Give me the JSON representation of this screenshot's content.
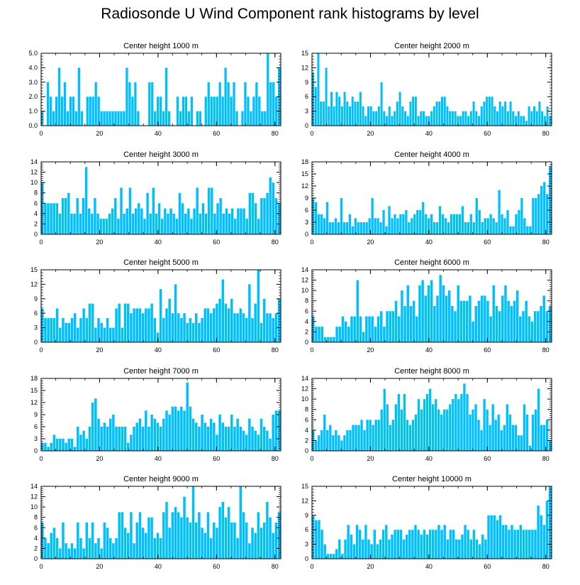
{
  "figure_title": "Radiosonde U Wind Component rank histograms by level",
  "bar_color": "#00bfff",
  "chart_data": [
    {
      "type": "bar",
      "title": "Center height 1000 m",
      "xlim": [
        0,
        82
      ],
      "ylim": [
        0,
        5
      ],
      "yticks": [
        "0.0",
        "1.0",
        "2.0",
        "3.0",
        "4.0",
        "5.0"
      ],
      "xticks": [
        0,
        20,
        40,
        60,
        80
      ],
      "values": [
        1,
        0,
        3,
        2,
        1,
        2,
        4,
        2,
        3,
        1,
        2,
        2,
        1,
        4,
        1,
        0,
        2,
        2,
        2,
        3,
        2,
        1,
        1,
        1,
        1,
        1,
        1,
        1,
        1,
        1,
        4,
        3,
        2,
        3,
        1,
        0,
        0,
        0,
        3,
        3,
        1,
        2,
        2,
        1,
        4,
        1,
        0,
        0,
        2,
        1,
        2,
        2,
        1,
        2,
        0,
        1,
        1,
        0,
        2,
        3,
        2,
        2,
        2,
        3,
        2,
        4,
        3,
        2,
        3,
        1,
        0,
        1,
        3,
        2,
        1,
        2,
        3,
        2,
        1,
        1,
        5,
        3,
        3,
        2,
        4
      ]
    },
    {
      "type": "bar",
      "title": "Center height 2000 m",
      "xlim": [
        0,
        82
      ],
      "ylim": [
        0,
        15
      ],
      "yticks": [
        "0",
        "3",
        "6",
        "9",
        "12",
        "15"
      ],
      "xticks": [
        0,
        20,
        40,
        60,
        80
      ],
      "values": [
        11,
        8,
        15,
        5,
        5,
        12,
        4,
        7,
        4,
        7,
        6,
        4,
        7,
        5,
        4,
        6,
        5,
        5,
        7,
        4,
        2,
        4,
        4,
        3,
        3,
        4,
        9,
        3,
        2,
        4,
        2,
        3,
        5,
        7,
        4,
        3,
        2,
        5,
        6,
        6,
        2,
        3,
        3,
        2,
        2,
        3,
        4,
        5,
        5,
        6,
        6,
        4,
        3,
        3,
        3,
        2,
        2,
        3,
        3,
        2,
        3,
        5,
        3,
        2,
        4,
        5,
        6,
        6,
        6,
        4,
        3,
        5,
        4,
        5,
        3,
        5,
        3,
        2,
        3,
        2,
        2,
        1,
        4,
        3,
        4,
        3,
        5,
        3,
        2,
        4,
        2
      ]
    },
    {
      "type": "bar",
      "title": "Center height 3000 m",
      "xlim": [
        0,
        82
      ],
      "ylim": [
        0,
        14
      ],
      "yticks": [
        "0",
        "2",
        "4",
        "6",
        "8",
        "10",
        "12",
        "14"
      ],
      "xticks": [
        0,
        20,
        40,
        60,
        80
      ],
      "values": [
        10,
        6,
        6,
        6,
        6,
        6,
        4,
        7,
        7,
        8,
        4,
        4,
        7,
        4,
        7,
        13,
        5,
        4,
        7,
        4,
        3,
        3,
        3,
        4,
        5,
        7,
        3,
        9,
        4,
        5,
        9,
        4,
        5,
        6,
        5,
        3,
        8,
        4,
        9,
        4,
        6,
        3,
        5,
        4,
        5,
        4,
        3,
        8,
        6,
        4,
        5,
        3,
        5,
        9,
        4,
        6,
        4,
        9,
        9,
        4,
        6,
        7,
        4,
        5,
        4,
        5,
        3,
        5,
        5,
        5,
        3,
        8,
        8,
        6,
        3,
        7,
        7,
        8,
        11,
        10,
        7,
        6
      ]
    },
    {
      "type": "bar",
      "title": "Center height 4000 m",
      "xlim": [
        0,
        82
      ],
      "ylim": [
        0,
        18
      ],
      "yticks": [
        "0",
        "3",
        "6",
        "9",
        "12",
        "15",
        "18"
      ],
      "xticks": [
        0,
        20,
        40,
        60,
        80
      ],
      "values": [
        9,
        8,
        5,
        5,
        4,
        8,
        3,
        3,
        4,
        3,
        9,
        3,
        3,
        5,
        2,
        4,
        3,
        3,
        3,
        3,
        4,
        9,
        4,
        4,
        3,
        6,
        2,
        7,
        4,
        5,
        4,
        5,
        5,
        6,
        3,
        4,
        5,
        6,
        6,
        8,
        5,
        4,
        5,
        3,
        3,
        7,
        5,
        4,
        3,
        5,
        5,
        5,
        5,
        7,
        3,
        3,
        5,
        3,
        9,
        6,
        3,
        4,
        4,
        5,
        4,
        3,
        11,
        5,
        4,
        6,
        2,
        2,
        5,
        6,
        9,
        4,
        2,
        2,
        9,
        9,
        10,
        12,
        13,
        10,
        17
      ]
    },
    {
      "type": "bar",
      "title": "Center height 5000 m",
      "xlim": [
        0,
        82
      ],
      "ylim": [
        0,
        15
      ],
      "yticks": [
        "0",
        "3",
        "6",
        "9",
        "12",
        "15"
      ],
      "xticks": [
        0,
        20,
        40,
        60,
        80
      ],
      "values": [
        7,
        5,
        5,
        5,
        5,
        7,
        3,
        5,
        4,
        4,
        5,
        6,
        3,
        5,
        7,
        5,
        8,
        8,
        3,
        5,
        4,
        3,
        5,
        3,
        3,
        7,
        8,
        3,
        8,
        8,
        6,
        7,
        7,
        7,
        6,
        7,
        7,
        8,
        5,
        2,
        11,
        5,
        7,
        9,
        6,
        12,
        6,
        5,
        6,
        4,
        5,
        4,
        6,
        4,
        5,
        7,
        7,
        6,
        7,
        8,
        9,
        13,
        8,
        7,
        9,
        6,
        6,
        7,
        6,
        5,
        12,
        5,
        8,
        15,
        4,
        9,
        6,
        6,
        5,
        6,
        9
      ]
    },
    {
      "type": "bar",
      "title": "Center height 6000 m",
      "xlim": [
        0,
        82
      ],
      "ylim": [
        0,
        14
      ],
      "yticks": [
        "0",
        "2",
        "4",
        "6",
        "8",
        "10",
        "12",
        "14"
      ],
      "xticks": [
        0,
        20,
        40,
        60,
        80
      ],
      "values": [
        5,
        3,
        3,
        3,
        1,
        1,
        1,
        1,
        3,
        3,
        5,
        4,
        3,
        5,
        5,
        12,
        5,
        2,
        5,
        5,
        5,
        3,
        5,
        6,
        3,
        6,
        6,
        6,
        8,
        5,
        10,
        7,
        11,
        7,
        8,
        5,
        11,
        12,
        9,
        11,
        12,
        7,
        9,
        13,
        11,
        9,
        10,
        7,
        6,
        11,
        8,
        8,
        8,
        9,
        4,
        7,
        8,
        9,
        9,
        8,
        5,
        11,
        7,
        6,
        9,
        11,
        8,
        7,
        8,
        10,
        5,
        6,
        8,
        5,
        4,
        6,
        6,
        7,
        9,
        6,
        7
      ]
    },
    {
      "type": "bar",
      "title": "Center height 7000 m",
      "xlim": [
        0,
        82
      ],
      "ylim": [
        0,
        18
      ],
      "yticks": [
        "0",
        "3",
        "6",
        "9",
        "12",
        "15",
        "18"
      ],
      "xticks": [
        0,
        20,
        40,
        60,
        80
      ],
      "values": [
        2,
        2,
        1,
        2,
        4,
        3,
        3,
        3,
        2,
        3,
        3,
        1,
        6,
        4,
        5,
        3,
        6,
        12,
        13,
        8,
        6,
        7,
        6,
        8,
        9,
        6,
        6,
        6,
        6,
        2,
        4,
        6,
        7,
        8,
        6,
        10,
        6,
        9,
        8,
        7,
        6,
        8,
        10,
        9,
        11,
        11,
        10,
        11,
        10,
        17,
        11,
        8,
        7,
        6,
        9,
        7,
        6,
        8,
        7,
        4,
        9,
        7,
        6,
        6,
        9,
        6,
        8,
        6,
        5,
        4,
        8,
        6,
        5,
        4,
        8,
        6,
        5,
        3,
        9,
        10,
        10
      ]
    },
    {
      "type": "bar",
      "title": "Center height 8000 m",
      "xlim": [
        0,
        82
      ],
      "ylim": [
        0,
        14
      ],
      "yticks": [
        "0",
        "2",
        "4",
        "6",
        "8",
        "10",
        "12",
        "14"
      ],
      "xticks": [
        0,
        20,
        40,
        60,
        80
      ],
      "values": [
        4,
        2,
        3,
        4,
        7,
        4,
        5,
        3,
        4,
        3,
        2,
        3,
        4,
        4,
        5,
        5,
        5,
        6,
        4,
        6,
        6,
        5,
        6,
        6,
        8,
        12,
        9,
        5,
        6,
        9,
        11,
        8,
        11,
        6,
        5,
        6,
        7,
        10,
        8,
        10,
        11,
        12,
        9,
        10,
        8,
        7,
        8,
        8,
        9,
        10,
        11,
        10,
        11,
        13,
        11,
        7,
        8,
        9,
        6,
        4,
        10,
        8,
        5,
        9,
        6,
        7,
        4,
        5,
        9,
        7,
        5,
        5,
        3,
        3,
        9,
        7,
        1,
        7,
        8,
        12,
        5,
        5,
        6,
        2
      ]
    },
    {
      "type": "bar",
      "title": "Center height 9000 m",
      "xlim": [
        0,
        82
      ],
      "ylim": [
        0,
        14
      ],
      "yticks": [
        "0",
        "2",
        "4",
        "6",
        "8",
        "10",
        "12",
        "14"
      ],
      "xticks": [
        0,
        20,
        40,
        60,
        80
      ],
      "values": [
        7,
        4,
        3,
        5,
        6,
        4,
        2,
        7,
        3,
        2,
        3,
        2,
        7,
        4,
        2,
        7,
        4,
        7,
        3,
        4,
        2,
        7,
        6,
        4,
        3,
        4,
        9,
        9,
        6,
        5,
        9,
        3,
        7,
        9,
        6,
        5,
        8,
        8,
        4,
        5,
        4,
        9,
        11,
        6,
        9,
        10,
        9,
        8,
        12,
        8,
        7,
        14,
        7,
        9,
        6,
        5,
        9,
        4,
        7,
        6,
        10,
        11,
        8,
        10,
        7,
        7,
        4,
        14,
        9,
        7,
        3,
        6,
        5,
        9,
        6,
        7,
        11,
        8,
        5,
        7,
        9
      ]
    },
    {
      "type": "bar",
      "title": "Center height 10000 m",
      "xlim": [
        0,
        82
      ],
      "ylim": [
        0,
        15
      ],
      "yticks": [
        "0",
        "3",
        "6",
        "9",
        "12",
        "15"
      ],
      "xticks": [
        0,
        20,
        40,
        60,
        80
      ],
      "values": [
        9,
        8,
        8,
        6,
        3,
        1,
        1,
        1,
        2,
        4,
        1,
        4,
        7,
        5,
        3,
        7,
        6,
        4,
        7,
        4,
        3,
        6,
        3,
        4,
        6,
        7,
        4,
        5,
        6,
        6,
        6,
        4,
        5,
        6,
        6,
        7,
        6,
        5,
        6,
        5,
        6,
        6,
        6,
        7,
        6,
        7,
        4,
        6,
        6,
        4,
        4,
        5,
        7,
        6,
        4,
        6,
        4,
        3,
        5,
        4,
        9,
        9,
        9,
        8,
        9,
        7,
        7,
        6,
        7,
        6,
        6,
        7,
        6,
        6,
        6,
        6,
        6,
        11,
        9,
        7,
        12,
        15
      ]
    }
  ]
}
